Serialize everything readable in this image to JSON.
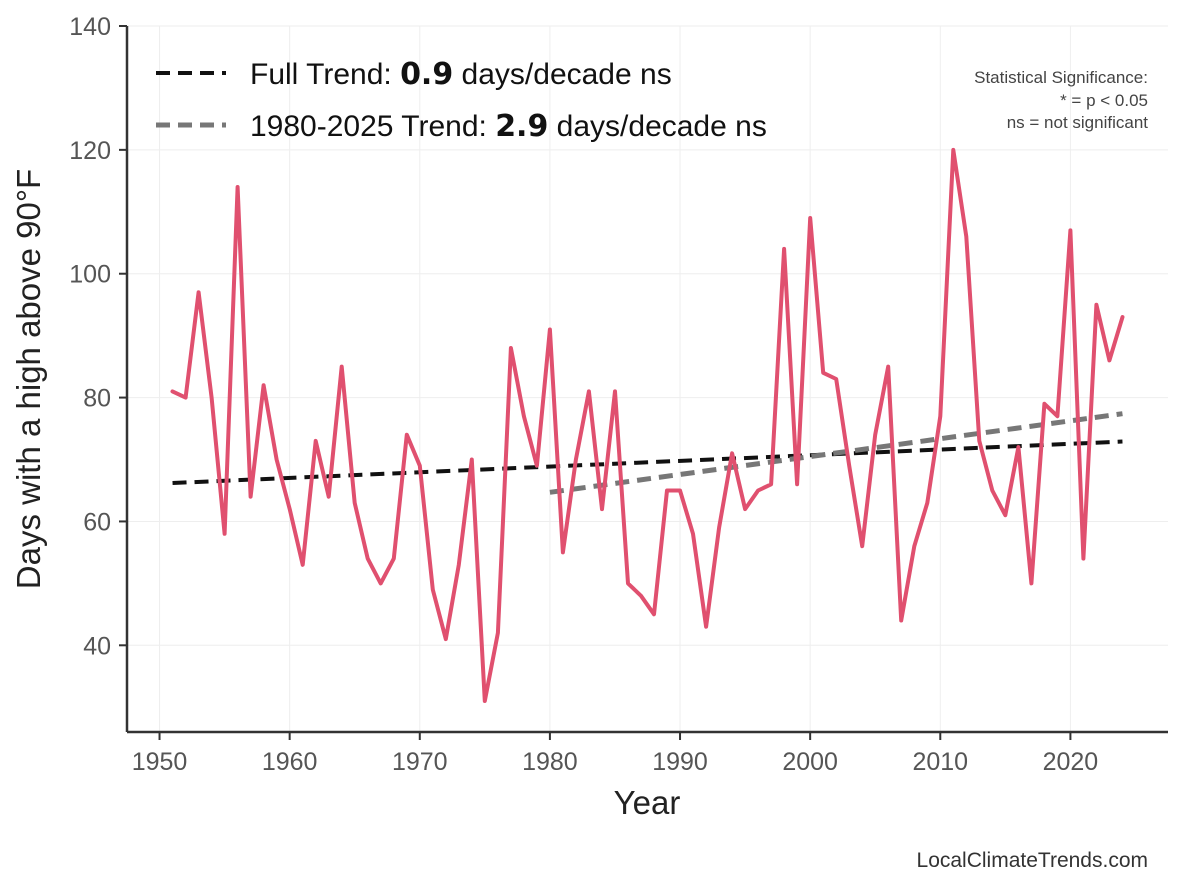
{
  "chart_data": {
    "type": "line",
    "title": "",
    "xlabel": "Year",
    "ylabel": "Days with a high above 90°F",
    "xlim": [
      1947.5,
      2027.5
    ],
    "ylim": [
      26,
      140
    ],
    "xticks": [
      1950,
      1960,
      1970,
      1980,
      1990,
      2000,
      2010,
      2020
    ],
    "yticks": [
      40,
      60,
      80,
      100,
      120,
      140
    ],
    "grid": true,
    "legend_position": "top-left",
    "series": [
      {
        "name": "",
        "color": "#e0506f",
        "x": [
          1951,
          1952,
          1953,
          1954,
          1955,
          1956,
          1957,
          1958,
          1959,
          1960,
          1961,
          1962,
          1963,
          1964,
          1965,
          1966,
          1967,
          1968,
          1969,
          1970,
          1971,
          1972,
          1973,
          1974,
          1975,
          1976,
          1977,
          1978,
          1979,
          1980,
          1981,
          1982,
          1983,
          1984,
          1985,
          1986,
          1987,
          1988,
          1989,
          1990,
          1991,
          1992,
          1993,
          1994,
          1995,
          1996,
          1997,
          1998,
          1999,
          2000,
          2001,
          2002,
          2003,
          2004,
          2005,
          2006,
          2007,
          2008,
          2009,
          2010,
          2011,
          2012,
          2013,
          2014,
          2015,
          2016,
          2017,
          2018,
          2019,
          2020,
          2021,
          2022,
          2023,
          2024
        ],
        "y": [
          81,
          80,
          97,
          80,
          58,
          114,
          64,
          82,
          70,
          62,
          53,
          73,
          64,
          85,
          63,
          54,
          50,
          54,
          74,
          69,
          49,
          41,
          53,
          70,
          31,
          42,
          88,
          77,
          69,
          91,
          55,
          70,
          81,
          62,
          81,
          50,
          48,
          45,
          65,
          65,
          58,
          43,
          59,
          71,
          62,
          65,
          66,
          104,
          66,
          109,
          84,
          83,
          69,
          56,
          74,
          85,
          44,
          56,
          63,
          77,
          120,
          106,
          73,
          65,
          61,
          72,
          50,
          79,
          77,
          107,
          54,
          95,
          86,
          93
        ]
      }
    ],
    "trends": [
      {
        "label_prefix": "Full Trend: ",
        "value_text": "0.9",
        "label_suffix": " days/decade ns",
        "color": "#111111",
        "x": [
          1951,
          2024
        ],
        "y": [
          66.2,
          72.9
        ]
      },
      {
        "label_prefix": "1980-2025 Trend: ",
        "value_text": "2.9",
        "label_suffix": " days/decade ns",
        "color": "#777777",
        "x": [
          1980,
          2024
        ],
        "y": [
          64.7,
          77.4
        ]
      }
    ],
    "annotation_lines": [
      "Statistical Significance:",
      "* = p < 0.05",
      "ns = not significant"
    ],
    "credit": "LocalClimateTrends.com"
  }
}
